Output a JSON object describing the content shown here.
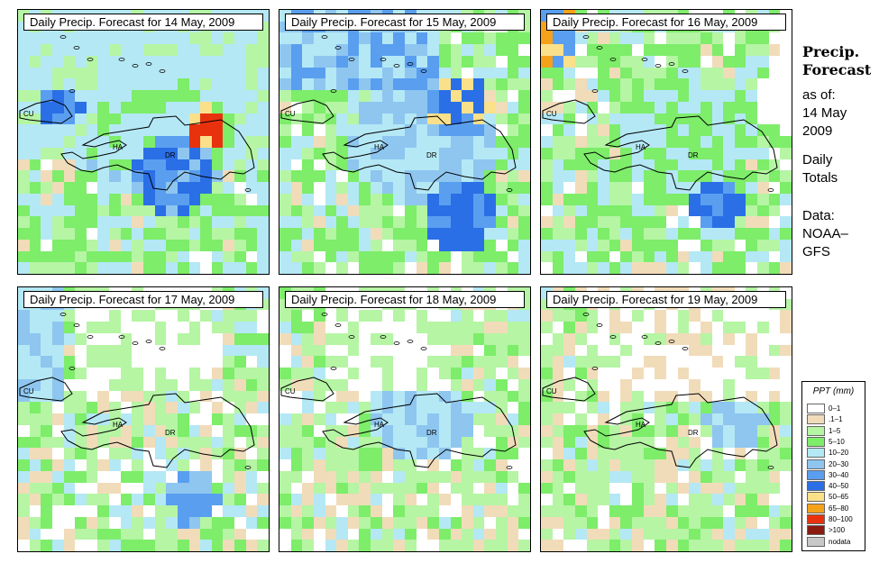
{
  "panels": [
    {
      "title": "Daily Precip. Forecast for  14 May, 2009",
      "mode": "wet1"
    },
    {
      "title": "Daily Precip. Forecast for  15 May, 2009",
      "mode": "wet2"
    },
    {
      "title": "Daily Precip. Forecast for  16 May, 2009",
      "mode": "mid"
    },
    {
      "title": "Daily Precip. Forecast for  17 May, 2009",
      "mode": "dry"
    },
    {
      "title": "Daily Precip. Forecast for  18 May, 2009",
      "mode": "dry2"
    },
    {
      "title": "Daily Precip. Forecast for  19 May, 2009",
      "mode": "dry3"
    }
  ],
  "map_labels": {
    "cuba": "CU",
    "haiti": "HA",
    "dominican_republic": "DR"
  },
  "sidebar": {
    "title_line1": "Precip.",
    "title_line2": "Forecast",
    "asof_label": "as of:",
    "date_line1": "14 May",
    "date_line2": "2009",
    "totals_line1": "Daily",
    "totals_line2": "Totals",
    "data_line1": "Data:",
    "data_line2": "NOAA–",
    "data_line3": "GFS"
  },
  "legend": {
    "title": "PPT (mm)",
    "classes": [
      {
        "label": "0–1",
        "color": "#ffffff"
      },
      {
        "label": ".1–1",
        "color": "#f1dcb9"
      },
      {
        "label": "1–5",
        "color": "#b5f5a4"
      },
      {
        "label": "5–10",
        "color": "#7ded6a"
      },
      {
        "label": "10–20",
        "color": "#b4e8f5"
      },
      {
        "label": "20–30",
        "color": "#8ec6f0"
      },
      {
        "label": "30–40",
        "color": "#5a9ef0"
      },
      {
        "label": "40–50",
        "color": "#2a6fe6"
      },
      {
        "label": "50–65",
        "color": "#fbe08a"
      },
      {
        "label": "65–80",
        "color": "#f5a21a"
      },
      {
        "label": "80–100",
        "color": "#e8320e"
      },
      {
        "label": ">100",
        "color": "#8b1a10"
      },
      {
        "label": "nodata",
        "color": "#c8c8c8"
      }
    ]
  }
}
